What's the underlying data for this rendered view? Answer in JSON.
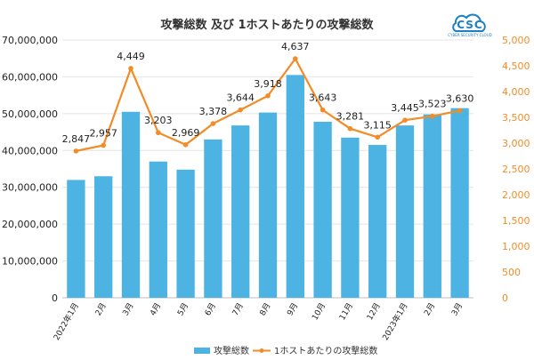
{
  "logo": {
    "text": "CSC",
    "subtext": "CYBER SECURITY CLOUD"
  },
  "chart_data": {
    "type": "bar+line",
    "title": "攻撃総数 及び 1ホストあたりの攻撃総数",
    "categories": [
      "2022年1月",
      "2月",
      "3月",
      "4月",
      "5月",
      "6月",
      "7月",
      "8月",
      "9月",
      "10月",
      "11月",
      "12月",
      "2023年1月",
      "2月",
      "3月"
    ],
    "series": [
      {
        "name": "攻撃総数",
        "type": "bar",
        "axis": "left",
        "color": "#4db3e3",
        "values": [
          32000000,
          33000000,
          50500000,
          37000000,
          34800000,
          43000000,
          46800000,
          50300000,
          60500000,
          47800000,
          43500000,
          41500000,
          46800000,
          49800000,
          51500000
        ]
      },
      {
        "name": "1ホストあたりの攻撃総数",
        "type": "line",
        "axis": "right",
        "color": "#f28c28",
        "values": [
          2847,
          2957,
          4449,
          3203,
          2969,
          3378,
          3644,
          3918,
          4637,
          3643,
          3281,
          3115,
          3445,
          3523,
          3630
        ],
        "labels": [
          "2,847",
          "2,957",
          "4,449",
          "3,203",
          "2,969",
          "3,378",
          "3,644",
          "3,918",
          "4,637",
          "3,643",
          "3,281",
          "3,115",
          "3,445",
          "3,523",
          "3,630"
        ]
      }
    ],
    "y_left": {
      "lim": [
        0,
        70000000
      ],
      "ticks": [
        "0",
        "10,000,000",
        "20,000,000",
        "30,000,000",
        "40,000,000",
        "50,000,000",
        "60,000,000",
        "70,000,000"
      ]
    },
    "y_right": {
      "lim": [
        0,
        5000
      ],
      "ticks": [
        "0",
        "500",
        "1,000",
        "1,500",
        "2,000",
        "2,500",
        "3,000",
        "3,500",
        "4,000",
        "4,500",
        "5,000"
      ]
    },
    "grid": true,
    "legend_position": "bottom"
  }
}
